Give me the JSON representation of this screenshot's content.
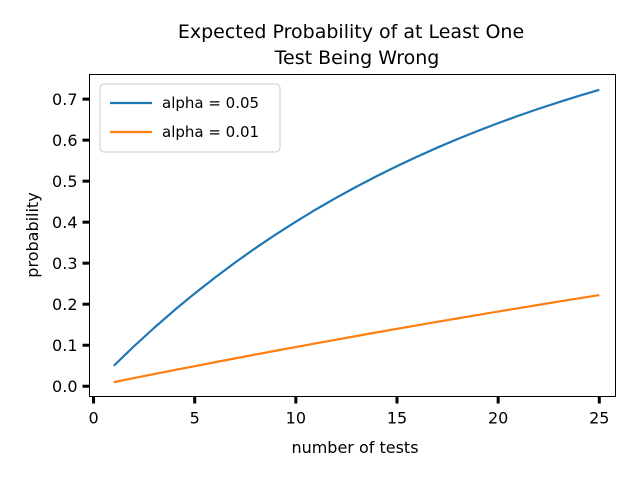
{
  "chart_data": {
    "type": "line",
    "title_line1": "Expected Probability of at Least One",
    "title_line2": "Test Being Wrong",
    "xlabel": "number of tests",
    "ylabel": "probability",
    "xlim": [
      -0.2,
      25.8
    ],
    "ylim": [
      -0.025,
      0.76
    ],
    "x_ticks": [
      0,
      5,
      10,
      15,
      20,
      25
    ],
    "y_ticks": [
      0.0,
      0.1,
      0.2,
      0.3,
      0.4,
      0.5,
      0.6,
      0.7
    ],
    "x_tick_labels": [
      "0",
      "5",
      "10",
      "15",
      "20",
      "25"
    ],
    "y_tick_labels": [
      "0.0",
      "0.1",
      "0.2",
      "0.3",
      "0.4",
      "0.5",
      "0.6",
      "0.7"
    ],
    "grid": false,
    "legend_position": "top-left",
    "x": [
      1,
      2,
      3,
      4,
      5,
      6,
      7,
      8,
      9,
      10,
      11,
      12,
      13,
      14,
      15,
      16,
      17,
      18,
      19,
      20,
      21,
      22,
      23,
      24,
      25
    ],
    "series": [
      {
        "name": "alpha = 0.05",
        "color": "#1f77b4",
        "values": [
          0.05,
          0.0975,
          0.1426,
          0.1855,
          0.2262,
          0.2649,
          0.3017,
          0.3366,
          0.3698,
          0.4013,
          0.4312,
          0.4596,
          0.4867,
          0.5123,
          0.5367,
          0.5599,
          0.5819,
          0.6028,
          0.6226,
          0.6415,
          0.6594,
          0.6765,
          0.6926,
          0.708,
          0.7226
        ]
      },
      {
        "name": "alpha = 0.01",
        "color": "#ff7f0e",
        "values": [
          0.01,
          0.0199,
          0.0297,
          0.0394,
          0.049,
          0.0585,
          0.0679,
          0.0773,
          0.0865,
          0.0956,
          0.1047,
          0.1136,
          0.1225,
          0.1313,
          0.14,
          0.1486,
          0.1571,
          0.1655,
          0.1738,
          0.1821,
          0.1903,
          0.1984,
          0.2064,
          0.2143,
          0.2222
        ]
      }
    ]
  }
}
